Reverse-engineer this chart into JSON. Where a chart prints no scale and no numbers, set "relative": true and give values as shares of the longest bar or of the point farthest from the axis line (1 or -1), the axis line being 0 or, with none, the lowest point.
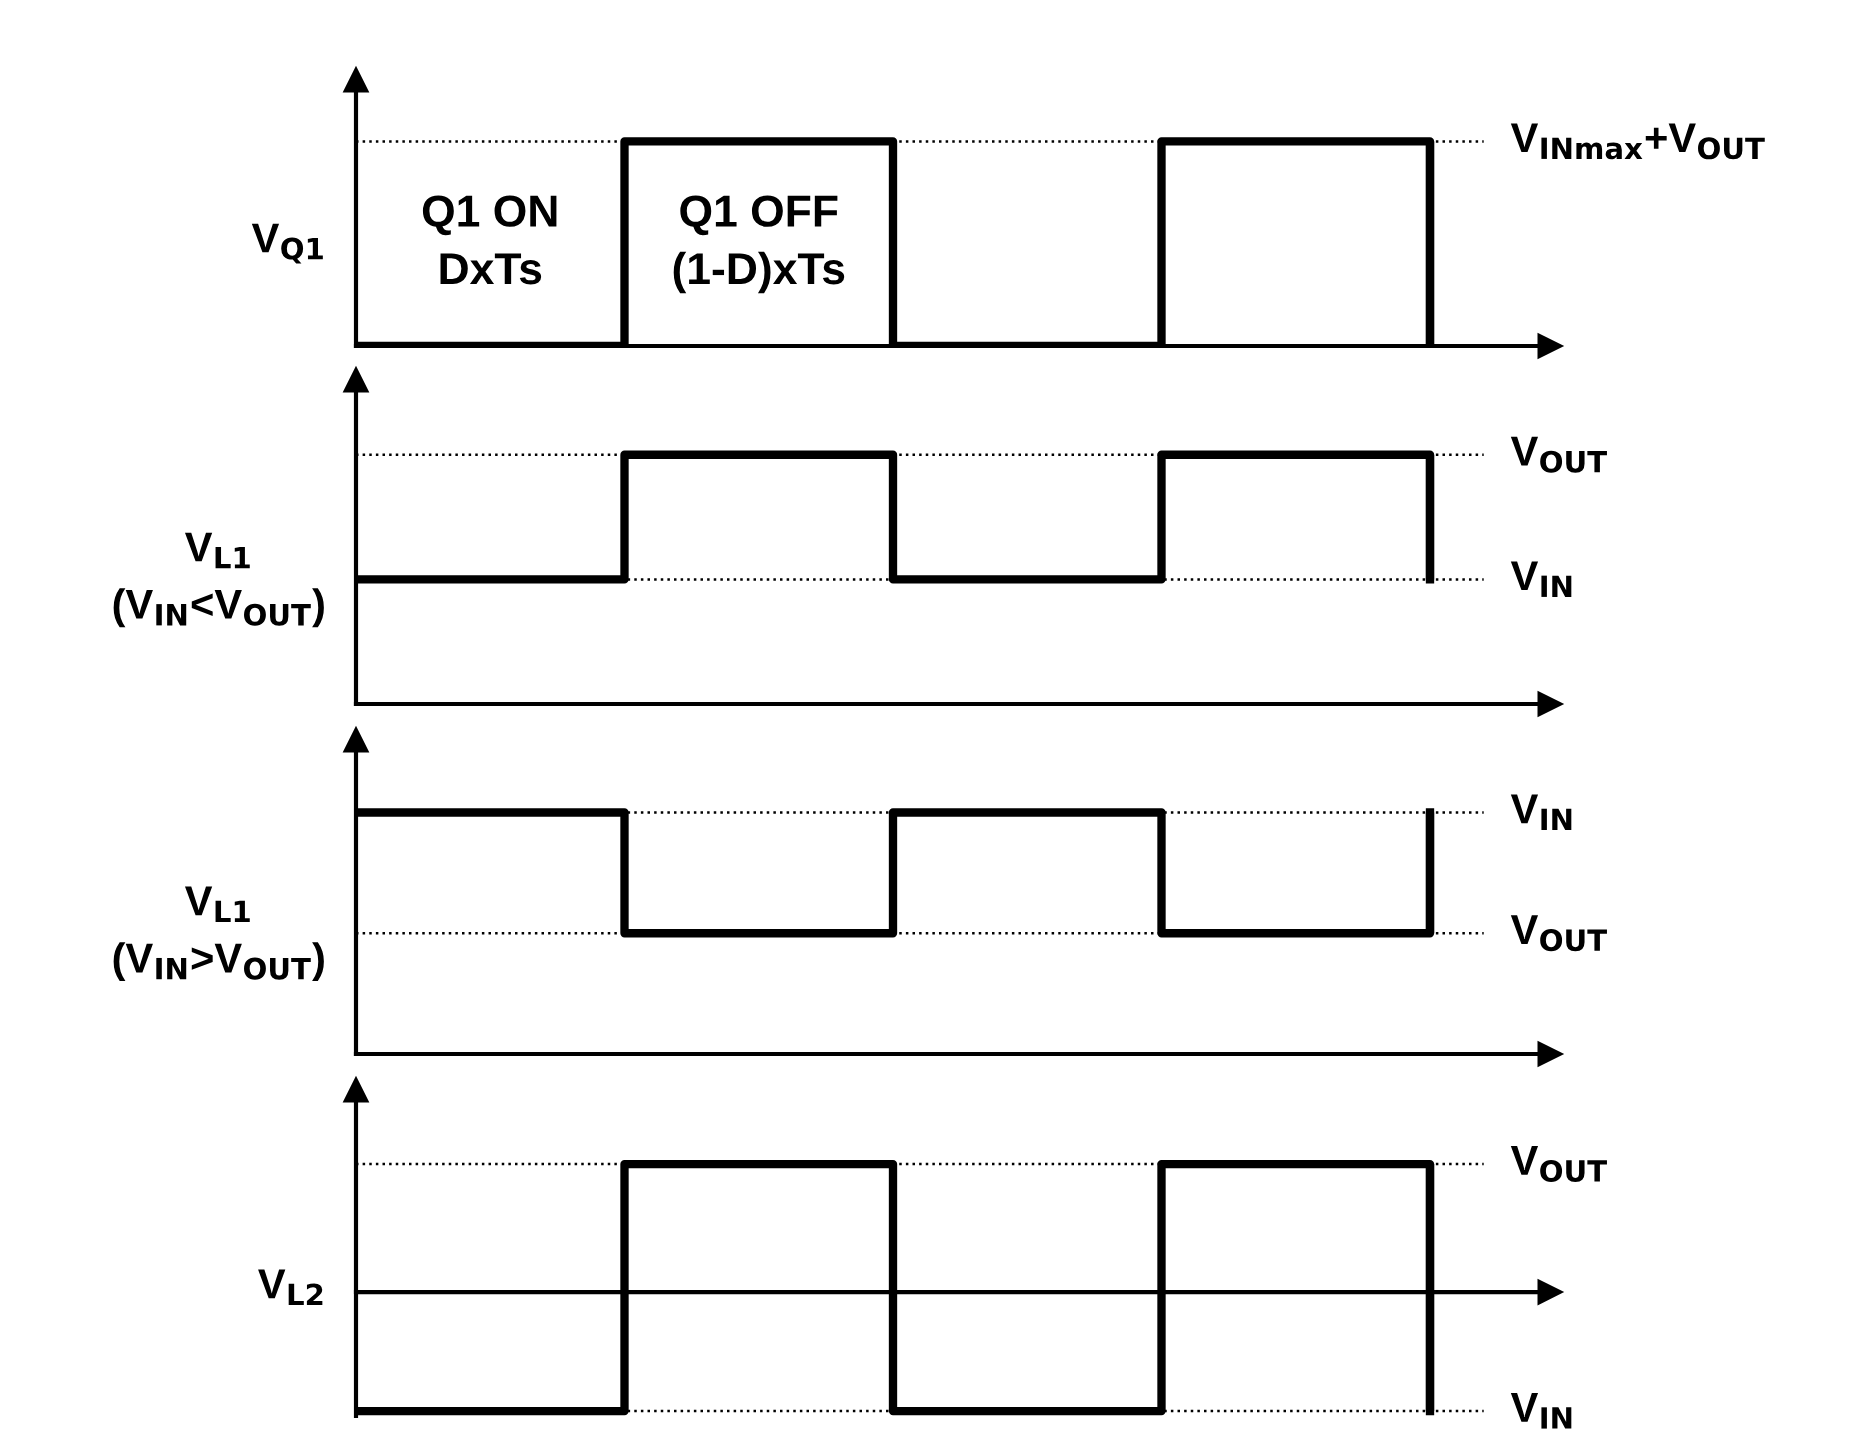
{
  "chart_data": [
    {
      "type": "step",
      "relative": true,
      "categories": [
        null,
        null,
        null,
        null,
        null
      ],
      "ylabel": "V$_{Q1}$",
      "line_style": "solid",
      "series": [
        {
          "color": "#000000",
          "values": [
            0,
            1,
            0,
            1,
            0
          ]
        }
      ],
      "ref_lines": [
        {
          "axis": "y",
          "value": 1,
          "label": "V$_{INmax}$+V$_{OUT}$",
          "color": "#000000",
          "line_style": "dotted"
        }
      ],
      "annotations": [
        "Q1 ON\nDxTs",
        "Q1 OFF\n(1-D)xTs"
      ]
    },
    {
      "type": "step",
      "relative": true,
      "categories": [
        null,
        null,
        null,
        null,
        null
      ],
      "ylabel": "V$_{L1}$\n(V$_{IN}$<V$_{OUT}$)",
      "line_style": "solid",
      "series": [
        {
          "color": "#000000",
          "values": [
            0.5,
            1,
            0.5,
            1,
            0.5
          ]
        }
      ],
      "ref_lines": [
        {
          "axis": "y",
          "value": 1,
          "label": "V$_{OUT}$",
          "color": "#000000",
          "line_style": "dotted"
        },
        {
          "axis": "y",
          "value": 0.5,
          "label": "V$_{IN}$",
          "color": "#000000",
          "line_style": "dotted"
        }
      ]
    },
    {
      "type": "step",
      "relative": true,
      "categories": [
        null,
        null,
        null,
        null,
        null
      ],
      "ylabel": "V$_{L1}$\n(V$_{IN}$>V$_{OUT}$)",
      "line_style": "solid",
      "series": [
        {
          "color": "#000000",
          "values": [
            1,
            0.5,
            1,
            0.5,
            1
          ]
        }
      ],
      "ref_lines": [
        {
          "axis": "y",
          "value": 1,
          "label": "V$_{IN}$",
          "color": "#000000",
          "line_style": "dotted"
        },
        {
          "axis": "y",
          "value": 0.5,
          "label": "V$_{OUT}$",
          "color": "#000000",
          "line_style": "dotted"
        }
      ]
    },
    {
      "type": "step",
      "relative": true,
      "categories": [
        null,
        null,
        null,
        null,
        null
      ],
      "ylabel": "V$_{L2}$",
      "line_style": "solid",
      "series": [
        {
          "color": "#000000",
          "values": [
            -0.93,
            1,
            -0.93,
            1,
            -0.93
          ]
        }
      ],
      "ref_lines": [
        {
          "axis": "y",
          "value": 1,
          "label": "V$_{OUT}$",
          "color": "#000000",
          "line_style": "dotted"
        },
        {
          "axis": "y",
          "value": -0.93,
          "label": "V$_{IN}$",
          "color": "#000000",
          "line_style": "dotted"
        }
      ]
    }
  ]
}
